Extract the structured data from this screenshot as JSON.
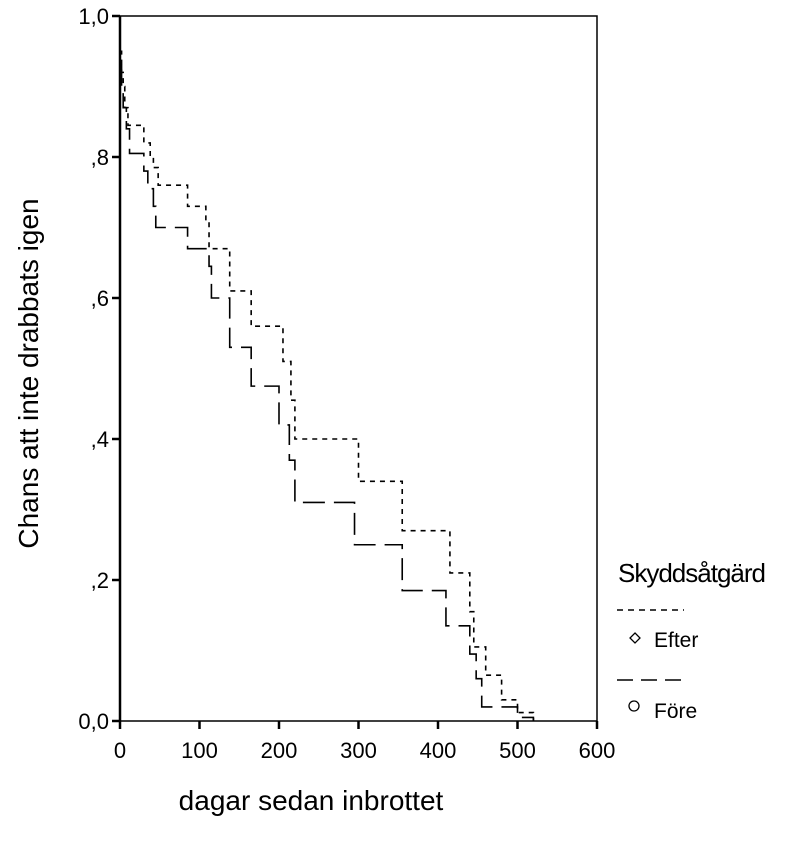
{
  "chart_data": {
    "type": "line",
    "step": true,
    "xlabel": "dagar sedan inbrottet",
    "ylabel": "Chans att inte drabbats igen",
    "xlim": [
      0,
      600
    ],
    "ylim": [
      0,
      1
    ],
    "xticks": [
      0,
      100,
      200,
      300,
      400,
      500,
      600
    ],
    "xtick_labels": [
      "0",
      "100",
      "200",
      "300",
      "400",
      "500",
      "600"
    ],
    "yticks": [
      0,
      0.2,
      0.4,
      0.6,
      0.8,
      1.0
    ],
    "ytick_labels": [
      "0,0",
      ",2",
      ",4",
      ",6",
      ",8",
      "1,0"
    ],
    "grid": false,
    "legend": {
      "title": "Skyddsåtgärd",
      "position": "right"
    },
    "series": [
      {
        "name": "Efter",
        "linestyle": "dotted",
        "marker": "diamond",
        "points": [
          [
            0,
            0.95
          ],
          [
            2,
            0.92
          ],
          [
            4,
            0.9
          ],
          [
            6,
            0.87
          ],
          [
            10,
            0.845
          ],
          [
            30,
            0.82
          ],
          [
            38,
            0.8
          ],
          [
            42,
            0.785
          ],
          [
            48,
            0.76
          ],
          [
            85,
            0.73
          ],
          [
            108,
            0.71
          ],
          [
            112,
            0.67
          ],
          [
            138,
            0.61
          ],
          [
            165,
            0.56
          ],
          [
            205,
            0.51
          ],
          [
            215,
            0.455
          ],
          [
            220,
            0.4
          ],
          [
            300,
            0.34
          ],
          [
            355,
            0.27
          ],
          [
            415,
            0.21
          ],
          [
            440,
            0.155
          ],
          [
            445,
            0.105
          ],
          [
            460,
            0.065
          ],
          [
            480,
            0.03
          ],
          [
            500,
            0.012
          ],
          [
            520,
            0.0
          ]
        ]
      },
      {
        "name": "Före",
        "linestyle": "dashed",
        "marker": "circle",
        "points": [
          [
            0,
            0.93
          ],
          [
            2,
            0.9
          ],
          [
            4,
            0.87
          ],
          [
            8,
            0.84
          ],
          [
            12,
            0.805
          ],
          [
            30,
            0.78
          ],
          [
            35,
            0.755
          ],
          [
            42,
            0.73
          ],
          [
            45,
            0.7
          ],
          [
            85,
            0.67
          ],
          [
            112,
            0.645
          ],
          [
            115,
            0.6
          ],
          [
            138,
            0.53
          ],
          [
            165,
            0.475
          ],
          [
            200,
            0.42
          ],
          [
            213,
            0.37
          ],
          [
            220,
            0.31
          ],
          [
            295,
            0.25
          ],
          [
            355,
            0.185
          ],
          [
            410,
            0.135
          ],
          [
            440,
            0.095
          ],
          [
            448,
            0.06
          ],
          [
            455,
            0.02
          ],
          [
            500,
            0.005
          ],
          [
            520,
            0.0
          ]
        ]
      }
    ]
  }
}
